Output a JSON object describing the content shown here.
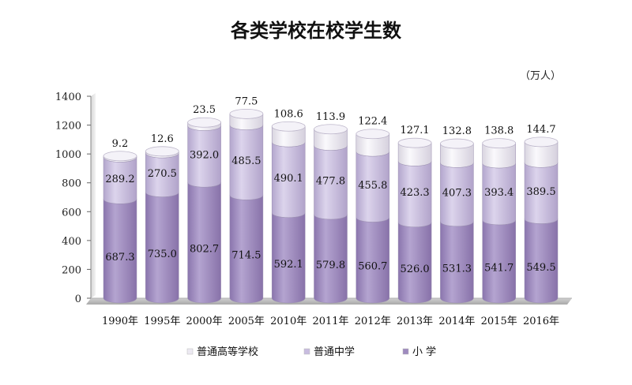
{
  "chart_data": {
    "type": "bar",
    "stacked": true,
    "title": "各类学校在校学生数",
    "unit": "（万人）",
    "categories": [
      "1990年",
      "1995年",
      "2000年",
      "2005年",
      "2010年",
      "2011年",
      "2012年",
      "2013年",
      "2014年",
      "2015年",
      "2016年"
    ],
    "series": [
      {
        "name": "小  学",
        "values": [
          687.3,
          735.0,
          802.7,
          714.5,
          592.1,
          579.8,
          560.7,
          526.0,
          531.3,
          541.7,
          549.5
        ],
        "color": "#9e8bbf"
      },
      {
        "name": "普通中学",
        "values": [
          289.2,
          270.5,
          392.0,
          485.5,
          490.1,
          477.8,
          455.8,
          423.3,
          407.3,
          393.4,
          389.5
        ],
        "color": "#c8bcdf"
      },
      {
        "name": "普通高等学校",
        "values": [
          9.2,
          12.6,
          23.5,
          77.5,
          108.6,
          113.9,
          122.4,
          127.1,
          132.8,
          138.8,
          144.7
        ],
        "color": "#ece9f2"
      }
    ],
    "value_labels": {
      "小  学": [
        "687.3",
        "735.0",
        "802.7",
        "714.5",
        "592.1",
        "579.8",
        "560.7",
        "526.0",
        "531.3",
        "541.7",
        "549.5"
      ],
      "普通中学": [
        "289.2",
        "270.5",
        "392.0",
        "485.5",
        "490.1",
        "477.8",
        "455.8",
        "423.3",
        "407.3",
        "393.4",
        "389.5"
      ],
      "普通高等学校": [
        "9.2",
        "12.6",
        "23.5",
        "77.5",
        "108.6",
        "113.9",
        "122.4",
        "127.1",
        "132.8",
        "138.8",
        "144.7"
      ]
    },
    "yticks": [
      "0",
      "200",
      "400",
      "600",
      "800",
      "1000",
      "1200",
      "1400"
    ],
    "ylim": [
      0,
      1400
    ],
    "grid": false,
    "legend_position": "bottom"
  }
}
